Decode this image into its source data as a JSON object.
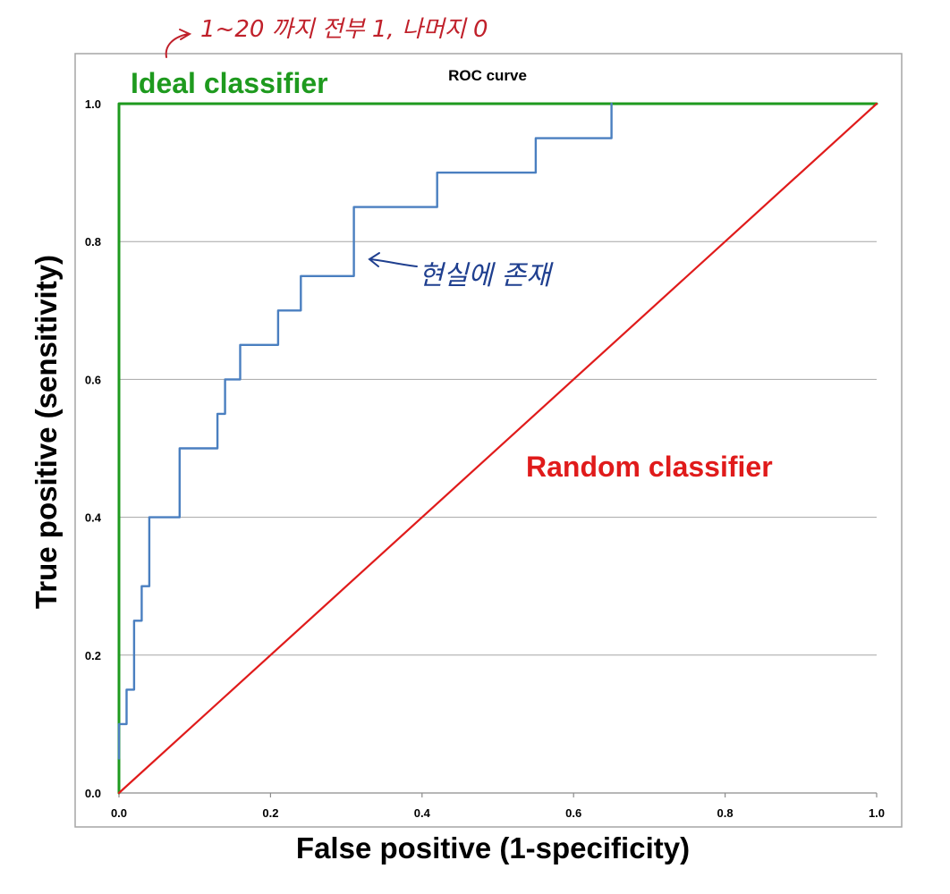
{
  "chart_data": {
    "type": "line",
    "title": "ROC curve",
    "xlabel": "False positive (1-specificity)",
    "ylabel": "True positive (sensitivity)",
    "xlim": [
      0,
      1
    ],
    "ylim": [
      0,
      1
    ],
    "x_ticks": [
      "0.0",
      "0.2",
      "0.4",
      "0.6",
      "0.8",
      "1.0"
    ],
    "y_ticks": [
      "0.0",
      "0.2",
      "0.4",
      "0.6",
      "0.8",
      "1.0"
    ],
    "grid": "horizontal",
    "series": [
      {
        "name": "Ideal classifier",
        "color": "#1e9a1e",
        "x": [
          0.0,
          0.0,
          1.0
        ],
        "y": [
          0.0,
          1.0,
          1.0
        ]
      },
      {
        "name": "Random classifier",
        "color": "#e01b1b",
        "x": [
          0.0,
          1.0
        ],
        "y": [
          0.0,
          1.0
        ]
      },
      {
        "color": "#4a7fc0",
        "x": [
          0.0,
          0.0,
          0.01,
          0.01,
          0.02,
          0.02,
          0.03,
          0.03,
          0.04,
          0.04,
          0.05,
          0.05,
          0.08,
          0.08,
          0.13,
          0.13,
          0.14,
          0.14,
          0.16,
          0.16,
          0.21,
          0.21,
          0.24,
          0.24,
          0.31,
          0.31,
          0.42,
          0.42,
          0.55,
          0.55,
          0.65,
          0.65
        ],
        "y": [
          0.05,
          0.1,
          0.1,
          0.15,
          0.15,
          0.25,
          0.25,
          0.3,
          0.3,
          0.4,
          0.4,
          0.4,
          0.4,
          0.5,
          0.5,
          0.55,
          0.55,
          0.6,
          0.6,
          0.65,
          0.65,
          0.7,
          0.7,
          0.75,
          0.75,
          0.85,
          0.85,
          0.9,
          0.9,
          0.95,
          0.95,
          1.0
        ]
      }
    ],
    "annotations": [
      {
        "text": "1~20 까지 전부 1, 나머지 0",
        "color": "#c0202a"
      },
      {
        "text": "현실에 존재",
        "color": "#1f3f8f"
      }
    ]
  }
}
